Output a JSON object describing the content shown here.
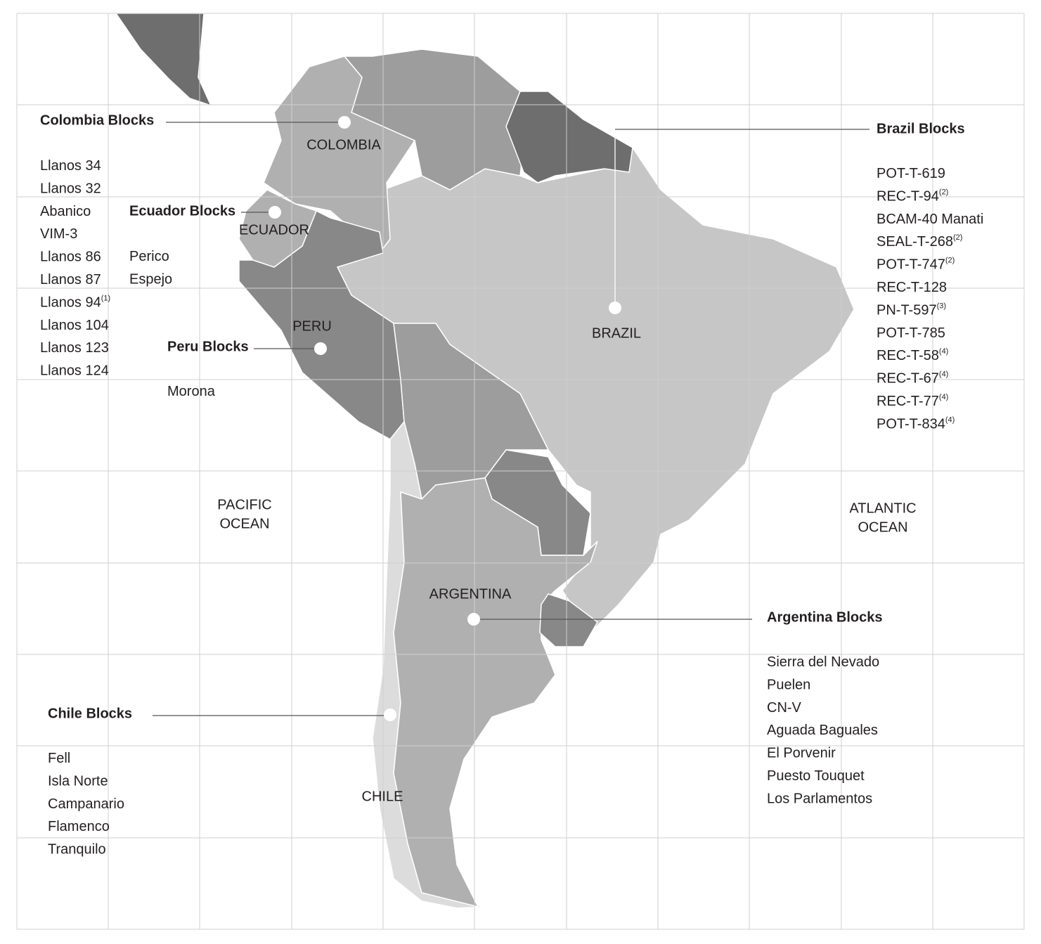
{
  "countries": [
    {
      "label": "COLOMBIA"
    },
    {
      "label": "ECUADOR"
    },
    {
      "label": "PERU"
    },
    {
      "label": "BRAZIL"
    },
    {
      "label": "ARGENTINA"
    },
    {
      "label": "CHILE"
    }
  ],
  "oceans": [
    {
      "lines": [
        "PACIFIC",
        "OCEAN"
      ]
    },
    {
      "lines": [
        "ATLANTIC",
        "OCEAN"
      ]
    }
  ],
  "blocks": [
    {
      "title": "Colombia Blocks",
      "items": [
        {
          "name": "Llanos 34"
        },
        {
          "name": "Llanos 32"
        },
        {
          "name": "Abanico"
        },
        {
          "name": "VIM-3"
        },
        {
          "name": "Llanos 86"
        },
        {
          "name": "Llanos 87"
        },
        {
          "name": "Llanos 94",
          "note": "(1)"
        },
        {
          "name": "Llanos 104"
        },
        {
          "name": "Llanos 123"
        },
        {
          "name": "Llanos 124"
        }
      ]
    },
    {
      "title": "Ecuador Blocks",
      "items": [
        {
          "name": "Perico"
        },
        {
          "name": "Espejo"
        }
      ]
    },
    {
      "title": "Peru Blocks",
      "items": [
        {
          "name": "Morona"
        }
      ]
    },
    {
      "title": "Brazil Blocks",
      "items": [
        {
          "name": "POT-T-619"
        },
        {
          "name": "REC-T-94",
          "note": "(2)"
        },
        {
          "name": "BCAM-40 Manati"
        },
        {
          "name": "SEAL-T-268",
          "note": "(2)"
        },
        {
          "name": "POT-T-747",
          "note": "(2)"
        },
        {
          "name": "REC-T-128"
        },
        {
          "name": "PN-T-597",
          "note": "(3)"
        },
        {
          "name": "POT-T-785"
        },
        {
          "name": "REC-T-58",
          "note": "(4)"
        },
        {
          "name": "REC-T-67",
          "note": "(4)"
        },
        {
          "name": "REC-T-77",
          "note": "(4)"
        },
        {
          "name": "POT-T-834",
          "note": "(4)"
        }
      ]
    },
    {
      "title": "Argentina Blocks",
      "items": [
        {
          "name": "Sierra del Nevado"
        },
        {
          "name": "Puelen"
        },
        {
          "name": "CN-V"
        },
        {
          "name": "Aguada Baguales"
        },
        {
          "name": "El Porvenir"
        },
        {
          "name": "Puesto Touquet"
        },
        {
          "name": "Los Parlamentos"
        }
      ]
    },
    {
      "title": "Chile Blocks",
      "items": [
        {
          "name": "Fell"
        },
        {
          "name": "Isla Norte"
        },
        {
          "name": "Campanario"
        },
        {
          "name": "Flamenco"
        },
        {
          "name": "Tranquilo"
        }
      ]
    }
  ]
}
